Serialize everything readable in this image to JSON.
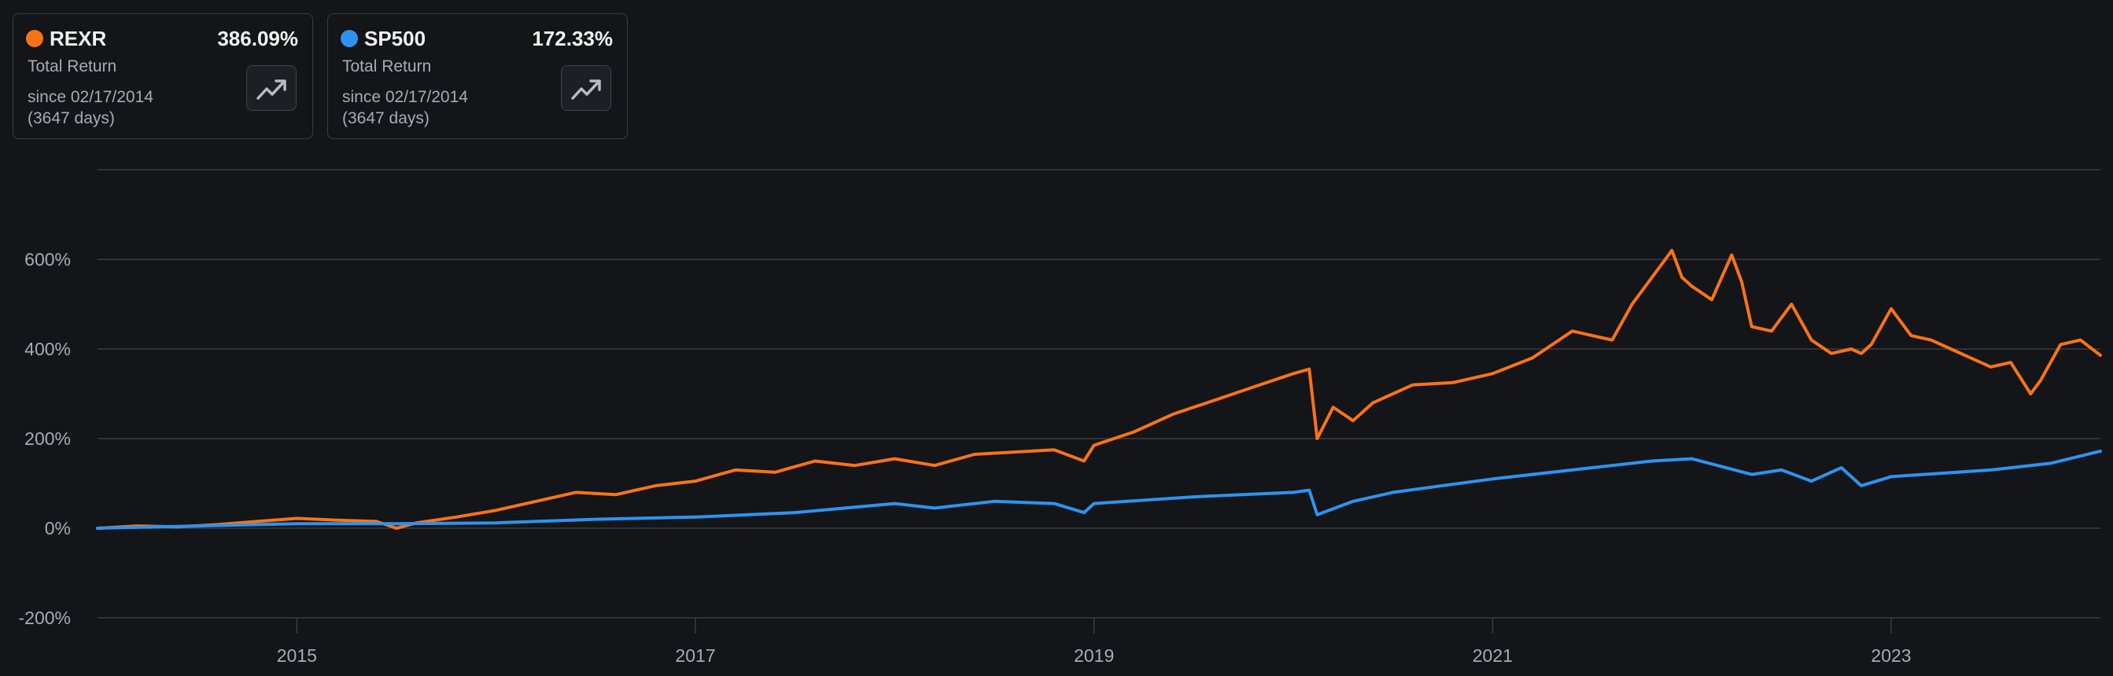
{
  "cards": [
    {
      "ticker": "REXR",
      "color": "#f97316",
      "total_return": "386.09%",
      "return_label": "Total Return",
      "since": "since 02/17/2014",
      "days": "(3647 days)",
      "button_icon": "trending-up-icon"
    },
    {
      "ticker": "SP500",
      "color": "#2e93f0",
      "total_return": "172.33%",
      "return_label": "Total Return",
      "since": "since 02/17/2014",
      "days": "(3647 days)",
      "button_icon": "trending-up-icon"
    }
  ],
  "colors": {
    "background": "#131518",
    "grid": "#3a3d42",
    "axis_text": "#a8acb2",
    "rexr": "#f97316",
    "sp500": "#2e93f0"
  },
  "chart_data": {
    "type": "line",
    "title": "",
    "xlabel": "",
    "ylabel": "",
    "xlim": [
      2014.0,
      2024.05
    ],
    "ylim": [
      -200,
      800
    ],
    "y_ticks": [
      -200,
      0,
      200,
      400,
      600
    ],
    "y_tick_labels": [
      "-200%",
      "0%",
      "200%",
      "400%",
      "600%"
    ],
    "x_ticks": [
      2015,
      2017,
      2019,
      2021,
      2023
    ],
    "x_tick_labels": [
      "2015",
      "2017",
      "2019",
      "2021",
      "2023"
    ],
    "grid": true,
    "legend": "cards top-left",
    "series": [
      {
        "name": "REXR",
        "color": "#f97316",
        "x": [
          2014.0,
          2014.2,
          2014.4,
          2014.6,
          2014.8,
          2015.0,
          2015.2,
          2015.4,
          2015.5,
          2015.6,
          2015.8,
          2016.0,
          2016.2,
          2016.4,
          2016.6,
          2016.8,
          2017.0,
          2017.2,
          2017.4,
          2017.6,
          2017.8,
          2018.0,
          2018.2,
          2018.4,
          2018.6,
          2018.8,
          2018.95,
          2019.0,
          2019.2,
          2019.4,
          2019.6,
          2019.8,
          2020.0,
          2020.08,
          2020.12,
          2020.2,
          2020.3,
          2020.4,
          2020.6,
          2020.8,
          2021.0,
          2021.2,
          2021.4,
          2021.6,
          2021.7,
          2021.8,
          2021.9,
          2021.95,
          2022.0,
          2022.1,
          2022.2,
          2022.25,
          2022.3,
          2022.4,
          2022.5,
          2022.6,
          2022.7,
          2022.8,
          2022.85,
          2022.9,
          2023.0,
          2023.1,
          2023.2,
          2023.3,
          2023.4,
          2023.5,
          2023.6,
          2023.7,
          2023.75,
          2023.85,
          2023.95,
          2024.05
        ],
        "y": [
          0,
          5,
          3,
          8,
          15,
          22,
          18,
          15,
          0,
          12,
          25,
          40,
          60,
          80,
          75,
          95,
          105,
          130,
          125,
          150,
          140,
          155,
          140,
          165,
          170,
          175,
          150,
          185,
          215,
          255,
          285,
          315,
          345,
          355,
          200,
          270,
          240,
          280,
          320,
          325,
          345,
          380,
          440,
          420,
          500,
          560,
          620,
          560,
          540,
          510,
          610,
          550,
          450,
          440,
          500,
          420,
          390,
          400,
          390,
          410,
          490,
          430,
          420,
          400,
          380,
          360,
          370,
          300,
          330,
          410,
          420,
          386
        ]
      },
      {
        "name": "SP500",
        "color": "#2e93f0",
        "x": [
          2014.0,
          2014.5,
          2015.0,
          2015.5,
          2016.0,
          2016.5,
          2017.0,
          2017.5,
          2018.0,
          2018.2,
          2018.5,
          2018.8,
          2018.95,
          2019.0,
          2019.5,
          2020.0,
          2020.08,
          2020.12,
          2020.3,
          2020.5,
          2021.0,
          2021.5,
          2021.8,
          2022.0,
          2022.3,
          2022.45,
          2022.6,
          2022.75,
          2022.85,
          2023.0,
          2023.5,
          2023.8,
          2024.05
        ],
        "y": [
          0,
          5,
          10,
          10,
          12,
          20,
          25,
          35,
          55,
          45,
          60,
          55,
          35,
          55,
          70,
          80,
          85,
          30,
          60,
          80,
          110,
          135,
          150,
          155,
          120,
          130,
          105,
          135,
          95,
          115,
          130,
          145,
          172
        ]
      }
    ]
  }
}
